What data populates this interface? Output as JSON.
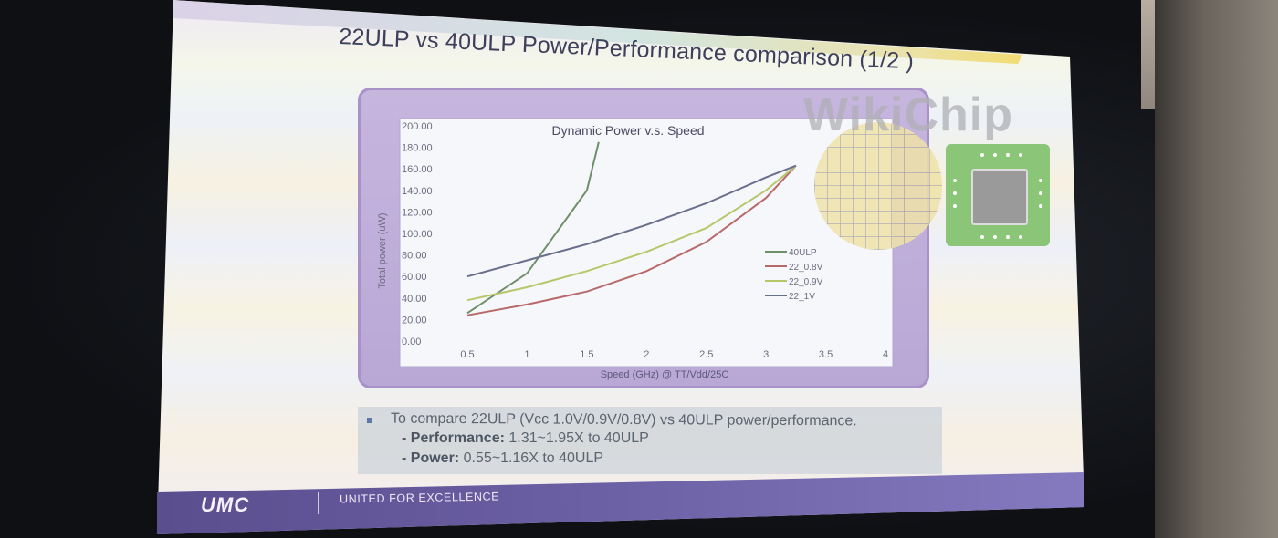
{
  "slide": {
    "title": "22ULP vs 40ULP Power/Performance comparison (1/2 )",
    "bullets": {
      "main": "To compare 22ULP (Vcc 1.0V/0.9V/0.8V) vs 40ULP power/performance.",
      "performance_label": "- Performance:",
      "performance_value": "1.31~1.95X to 40ULP",
      "power_label": "- Power:",
      "power_value": "0.55~1.16X to 40ULP"
    },
    "footer": {
      "logo": "UMC",
      "slogan": "UNITED FOR EXCELLENCE"
    },
    "watermark": "WikiChip"
  },
  "colors": {
    "s40ulp": "#6f8f6a",
    "s22_0_8v": "#b86a6a",
    "s22_0_9v": "#b8c66a",
    "s22_1v": "#6a6f8c"
  },
  "chart_data": {
    "type": "line",
    "title": "Dynamic Power v.s. Speed",
    "xlabel": "Speed (GHz) @ TT/Vdd/25C",
    "ylabel": "Total power (uW)",
    "xlim": [
      0,
      4
    ],
    "ylim": [
      0,
      200
    ],
    "x_ticks": [
      "0.5",
      "1",
      "1.5",
      "2",
      "2.5",
      "3",
      "3.5",
      "4"
    ],
    "y_ticks": [
      "0.00",
      "20.00",
      "40.00",
      "60.00",
      "80.00",
      "100.00",
      "120.00",
      "140.00",
      "160.00",
      "180.00",
      "200.00"
    ],
    "legend_position": "right",
    "series": [
      {
        "name": "40ULP",
        "x": [
          0.5,
          1.0,
          1.5,
          1.6
        ],
        "y": [
          26,
          63,
          140,
          185
        ]
      },
      {
        "name": "22_0.8V",
        "x": [
          0.5,
          1.0,
          1.5,
          2.0,
          2.5,
          3.0,
          3.25
        ],
        "y": [
          24,
          34,
          46,
          65,
          92,
          133,
          163
        ]
      },
      {
        "name": "22_0.9V",
        "x": [
          0.5,
          1.0,
          1.5,
          2.0,
          2.5,
          3.0,
          3.25
        ],
        "y": [
          38,
          50,
          65,
          83,
          105,
          140,
          163
        ]
      },
      {
        "name": "22_1V",
        "x": [
          0.5,
          1.0,
          1.5,
          2.0,
          2.5,
          3.0,
          3.25
        ],
        "y": [
          60,
          75,
          90,
          108,
          128,
          152,
          163
        ]
      }
    ]
  }
}
